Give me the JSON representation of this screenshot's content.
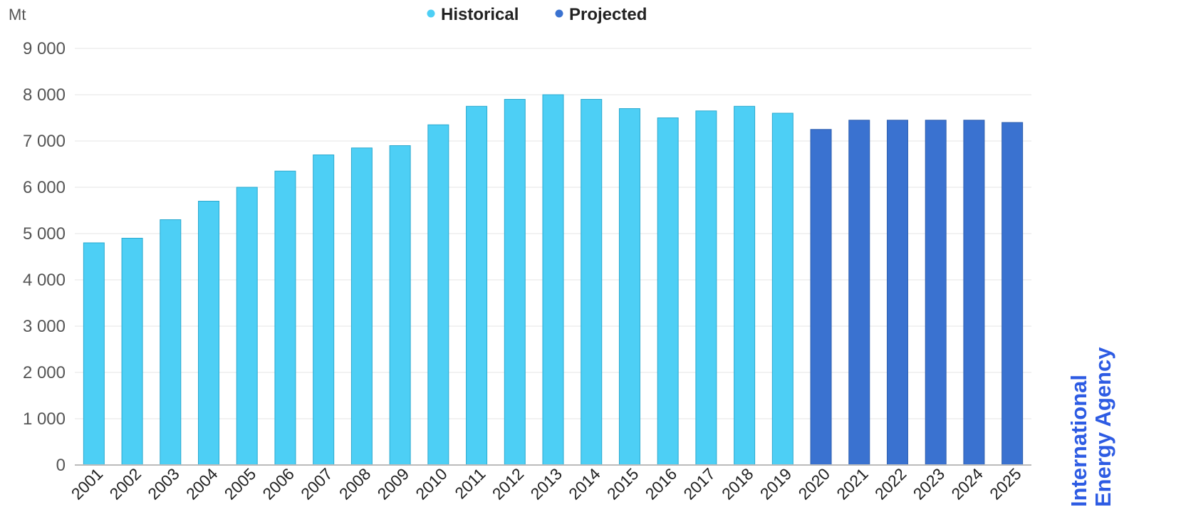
{
  "chart_data": {
    "type": "bar",
    "unit_label": "Mt",
    "categories": [
      "2001",
      "2002",
      "2003",
      "2004",
      "2005",
      "2006",
      "2007",
      "2008",
      "2009",
      "2010",
      "2011",
      "2012",
      "2013",
      "2014",
      "2015",
      "2016",
      "2017",
      "2018",
      "2019",
      "2020",
      "2021",
      "2022",
      "2023",
      "2024",
      "2025"
    ],
    "values": [
      4800,
      4900,
      5300,
      5700,
      6000,
      6350,
      6700,
      6850,
      6900,
      7350,
      7750,
      7900,
      8000,
      7900,
      7700,
      7500,
      7650,
      7750,
      7600,
      7250,
      7450,
      7450,
      7450,
      7450,
      7400
    ],
    "series_assignment": [
      "Historical",
      "Historical",
      "Historical",
      "Historical",
      "Historical",
      "Historical",
      "Historical",
      "Historical",
      "Historical",
      "Historical",
      "Historical",
      "Historical",
      "Historical",
      "Historical",
      "Historical",
      "Historical",
      "Historical",
      "Historical",
      "Historical",
      "Projected",
      "Projected",
      "Projected",
      "Projected",
      "Projected",
      "Projected"
    ],
    "legend": [
      {
        "name": "Historical",
        "color": "#4dcff5"
      },
      {
        "name": "Projected",
        "color": "#3a72d0"
      }
    ],
    "legend_position": "top-center",
    "ylim": [
      0,
      9000
    ],
    "y_ticks": [
      0,
      1000,
      2000,
      3000,
      4000,
      5000,
      6000,
      7000,
      8000,
      9000
    ],
    "y_tick_labels": [
      "0",
      "1 000",
      "2 000",
      "3 000",
      "4 000",
      "5 000",
      "6 000",
      "7 000",
      "8 000",
      "9 000"
    ],
    "grid": true
  },
  "watermark": {
    "line1": "International",
    "line2": "Energy Agency",
    "color": "#2d5be3"
  }
}
